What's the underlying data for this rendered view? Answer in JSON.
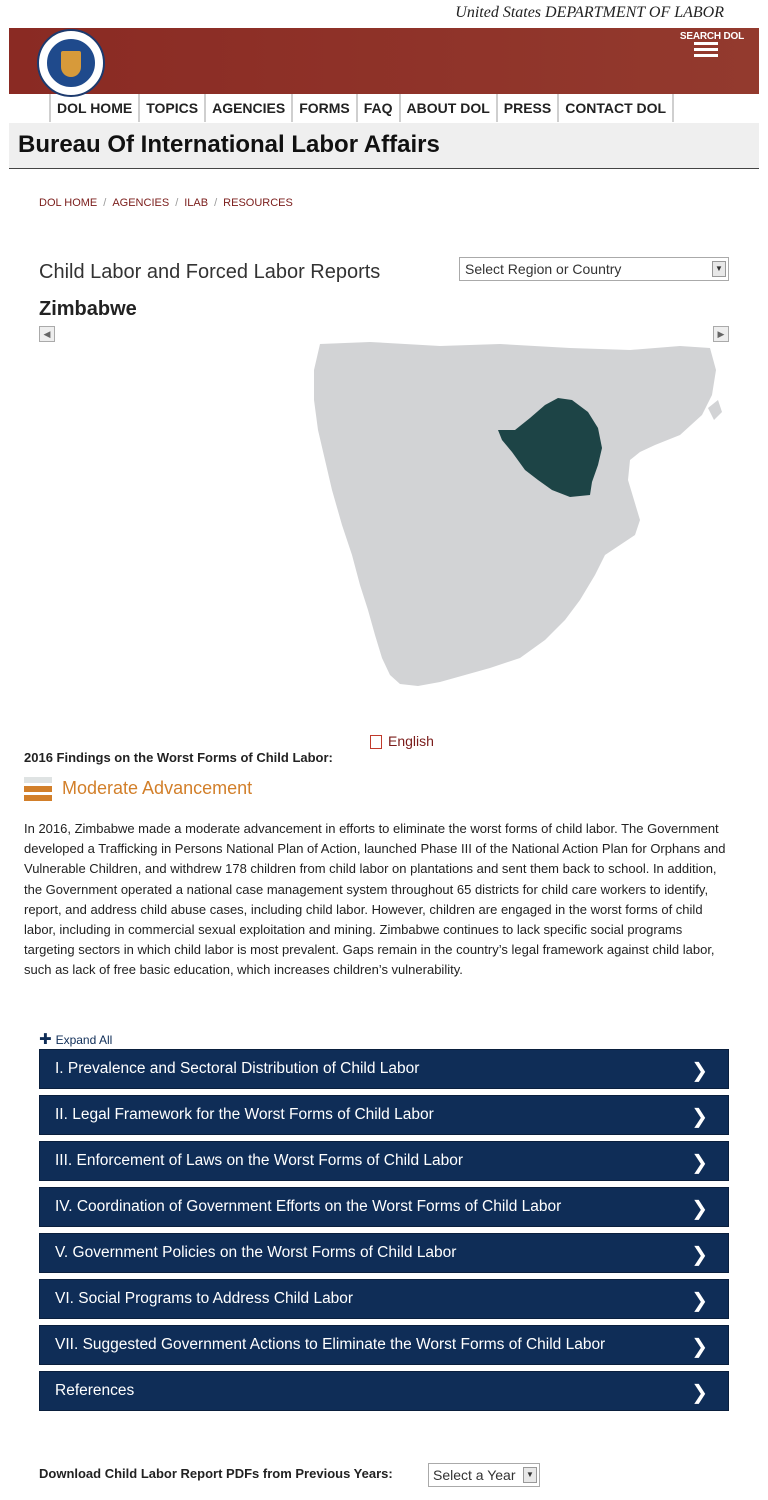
{
  "header": {
    "tagline": "United States DEPARTMENT OF LABOR",
    "search_label": "SEARCH DOL",
    "seal_icon": "dol-seal-icon",
    "menu_icon": "hamburger-menu-icon",
    "brand_color": "#8a2a23"
  },
  "nav": {
    "items": [
      "DOL HOME",
      "TOPICS",
      "AGENCIES",
      "FORMS",
      "FAQ",
      "ABOUT DOL",
      "PRESS",
      "CONTACT DOL"
    ]
  },
  "bureau": {
    "title": "Bureau Of International Labor Affairs"
  },
  "breadcrumb": [
    "DOL HOME",
    "AGENCIES",
    "ILAB",
    "RESOURCES"
  ],
  "report": {
    "heading": "Child Labor and Forced Labor Reports",
    "region_select": "Select Region or Country",
    "country": "Zimbabwe",
    "map_land_color": "#d2d3d5",
    "map_highlight_color": "#1d4446"
  },
  "findings": {
    "title": "2016 Findings on the Worst Forms of Child Labor:",
    "pdf_link": "English",
    "pdf_icon": "pdf-file-icon",
    "level": "Moderate Advancement",
    "level_color": "#d27f2a",
    "summary": "In 2016, Zimbabwe made a moderate advancement in efforts to eliminate the worst forms of child labor. The Government developed a Trafficking in Persons National Plan of Action, launched Phase III of the National Action Plan for Orphans and Vulnerable Children, and withdrew 178 children from child labor on plantations and sent them back to school. In addition, the Government operated a national case management system throughout 65 districts for child care workers to identify, report, and address child abuse cases, including child labor. However, children are engaged in the worst forms of child labor, including in commercial sexual exploitation and mining. Zimbabwe continues to lack specific social programs targeting sectors in which child labor is most prevalent. Gaps remain in the country’s legal framework against child labor, such as lack of free basic education, which increases children’s vulnerability."
  },
  "accordion": {
    "expand_all": "Expand All",
    "sections": [
      "I. Prevalence and Sectoral Distribution of Child Labor",
      "II. Legal Framework for the Worst Forms of Child Labor",
      "III. Enforcement of Laws on the Worst Forms of Child Labor",
      "IV. Coordination of Government Efforts on the Worst Forms of Child Labor",
      "V. Government Policies on the Worst Forms of Child Labor",
      "VI. Social Programs to Address Child Labor",
      "VII. Suggested Government Actions to Eliminate the Worst Forms of Child Labor",
      "References"
    ],
    "color": "#0f2d57"
  },
  "download": {
    "label": "Download Child Labor Report PDFs from Previous Years:",
    "year_select": "Select a Year"
  }
}
